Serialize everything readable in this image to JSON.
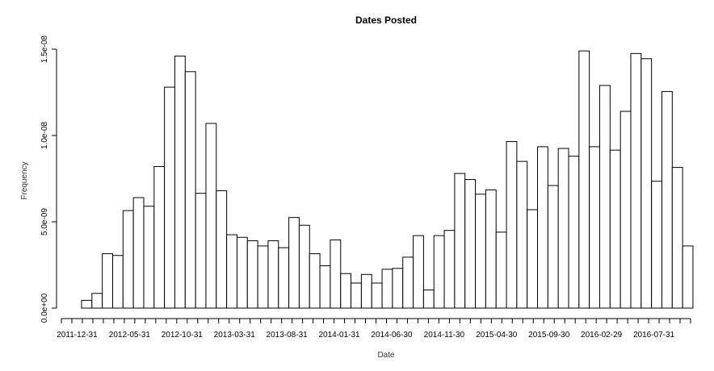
{
  "chart_data": {
    "type": "bar",
    "title": "Dates Posted",
    "xlabel": "Date",
    "ylabel": "Frequency",
    "ylim": [
      0,
      1.5e-08
    ],
    "y_ticks": [
      {
        "value": 0,
        "label": "0.0e+00"
      },
      {
        "value": 5e-09,
        "label": "5.0e-09"
      },
      {
        "value": 1e-08,
        "label": "1.0e-08"
      },
      {
        "value": 1.5e-08,
        "label": "1.5e-08"
      }
    ],
    "x_tick_labels": [
      "2011-12-31",
      "2012-05-31",
      "2012-10-31",
      "2013-03-31",
      "2013-08-31",
      "2014-01-31",
      "2014-06-30",
      "2014-11-30",
      "2015-04-30",
      "2015-09-30",
      "2016-02-29",
      "2016-07-31"
    ],
    "x_tick_count": 60,
    "bins_per_label": 5,
    "values": [
      4.5e-10,
      8.5e-10,
      3.15e-09,
      3.05e-09,
      5.65e-09,
      6.4e-09,
      5.9e-09,
      8.2e-09,
      1.28e-08,
      1.46e-08,
      1.37e-08,
      6.65e-09,
      1.07e-08,
      6.8e-09,
      4.25e-09,
      4.1e-09,
      3.9e-09,
      3.6e-09,
      3.9e-09,
      3.5e-09,
      5.25e-09,
      4.8e-09,
      3.15e-09,
      2.45e-09,
      3.95e-09,
      2e-09,
      1.45e-09,
      1.95e-09,
      1.45e-09,
      2.25e-09,
      2.3e-09,
      2.95e-09,
      4.2e-09,
      1.05e-09,
      4.2e-09,
      4.5e-09,
      7.8e-09,
      7.45e-09,
      6.6e-09,
      6.85e-09,
      4.4e-09,
      9.65e-09,
      8.5e-09,
      5.7e-09,
      9.35e-09,
      7.1e-09,
      9.25e-09,
      8.8e-09,
      1.49e-08,
      9.35e-09,
      1.29e-08,
      9.15e-09,
      1.14e-08,
      1.475e-08,
      1.445e-08,
      7.35e-09,
      1.255e-08,
      8.15e-09,
      3.6e-09
    ]
  }
}
